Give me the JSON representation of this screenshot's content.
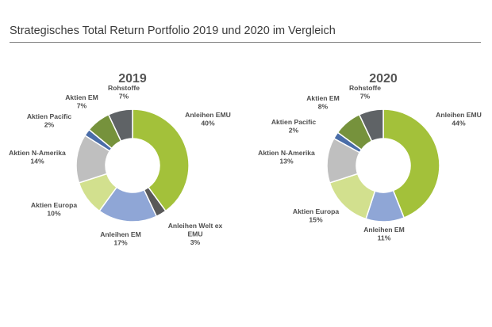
{
  "header": {
    "title": "Strategisches Total Return Portfolio 2019 und 2020 im Vergleich"
  },
  "colors": {
    "Anleihen EMU": "#a3c13a",
    "Anleihen Welt ex EMU": "#595959",
    "Anleihen EM": "#8fa6d6",
    "Aktien Europa": "#d2e08e",
    "Aktien N-Amerika": "#bfbfbf",
    "Aktien Pacific": "#4a6da8",
    "Aktien EM": "#76923c",
    "Rohstoffe": "#5f6366"
  },
  "chart_data": [
    {
      "type": "pie",
      "title": "2019",
      "donut": true,
      "slices": [
        {
          "name": "Anleihen EMU",
          "label": [
            "Anleihen EMU"
          ],
          "value": 40,
          "display": "40%"
        },
        {
          "name": "Anleihen Welt ex EMU",
          "label": [
            "Anleihen Welt ex",
            "EMU"
          ],
          "value": 3,
          "display": "3%"
        },
        {
          "name": "Anleihen EM",
          "label": [
            "Anleihen EM"
          ],
          "value": 17,
          "display": "17%"
        },
        {
          "name": "Aktien Europa",
          "label": [
            "Aktien Europa"
          ],
          "value": 10,
          "display": "10%"
        },
        {
          "name": "Aktien N-Amerika",
          "label": [
            "Aktien N-Amerika"
          ],
          "value": 14,
          "display": "14%"
        },
        {
          "name": "Aktien Pacific",
          "label": [
            "Aktien Pacific"
          ],
          "value": 2,
          "display": "2%"
        },
        {
          "name": "Aktien EM",
          "label": [
            "Aktien EM"
          ],
          "value": 7,
          "display": "7%"
        },
        {
          "name": "Rohstoffe",
          "label": [
            "Rohstoffe"
          ],
          "value": 7,
          "display": "7%"
        }
      ]
    },
    {
      "type": "pie",
      "title": "2020",
      "donut": true,
      "slices": [
        {
          "name": "Anleihen EMU",
          "label": [
            "Anleihen EMU"
          ],
          "value": 44,
          "display": "44%"
        },
        {
          "name": "Anleihen EM",
          "label": [
            "Anleihen EM"
          ],
          "value": 11,
          "display": "11%"
        },
        {
          "name": "Aktien Europa",
          "label": [
            "Aktien Europa"
          ],
          "value": 15,
          "display": "15%"
        },
        {
          "name": "Aktien N-Amerika",
          "label": [
            "Aktien N-Amerika"
          ],
          "value": 13,
          "display": "13%"
        },
        {
          "name": "Aktien Pacific",
          "label": [
            "Aktien Pacific"
          ],
          "value": 2,
          "display": "2%"
        },
        {
          "name": "Aktien EM",
          "label": [
            "Aktien EM"
          ],
          "value": 8,
          "display": "8%"
        },
        {
          "name": "Rohstoffe",
          "label": [
            "Rohstoffe"
          ],
          "value": 7,
          "display": "7%"
        }
      ]
    }
  ]
}
